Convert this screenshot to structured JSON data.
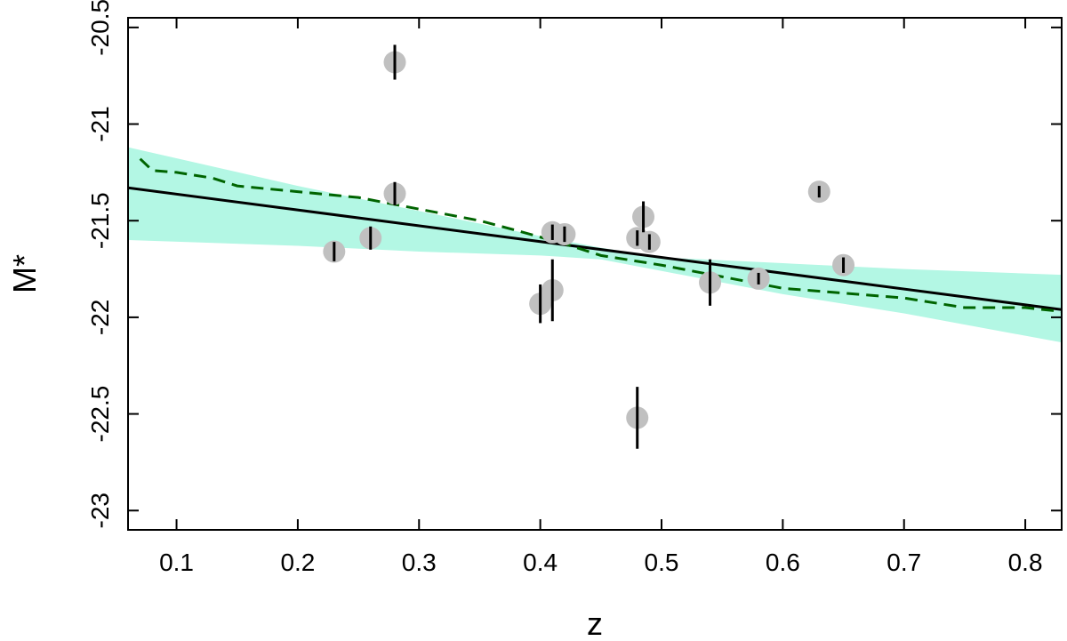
{
  "chart_data": {
    "type": "scatter",
    "title": "",
    "xlabel": "z",
    "ylabel": "M*",
    "xlim": [
      0.06,
      0.83
    ],
    "ylim": [
      -23.1,
      -20.45
    ],
    "y_inverted": true,
    "grid": false,
    "x_ticks": [
      0.1,
      0.2,
      0.3,
      0.4,
      0.5,
      0.6,
      0.7,
      0.8
    ],
    "x_tick_labels": [
      "0.1",
      "0.2",
      "0.3",
      "0.4",
      "0.5",
      "0.6",
      "0.7",
      "0.8"
    ],
    "y_ticks": [
      -20.5,
      -21,
      -21.5,
      -22,
      -22.5,
      -23
    ],
    "y_tick_labels": [
      "-20.5",
      "-21",
      "-21.5",
      "-22",
      "-22.5",
      "-23"
    ],
    "colors": {
      "points": "#c0c0c0",
      "errorbars": "#000000",
      "band": "#b3f7e4",
      "fit_line": "#000000",
      "dashed_line": "#006400"
    },
    "points": [
      {
        "x": 0.23,
        "y": -21.66,
        "err": 0.05
      },
      {
        "x": 0.26,
        "y": -21.59,
        "err": 0.06
      },
      {
        "x": 0.28,
        "y": -20.68,
        "err": 0.09
      },
      {
        "x": 0.28,
        "y": -21.36,
        "err": 0.06
      },
      {
        "x": 0.4,
        "y": -21.93,
        "err": 0.1
      },
      {
        "x": 0.41,
        "y": -21.86,
        "err": 0.16
      },
      {
        "x": 0.41,
        "y": -21.56,
        "err": 0.04
      },
      {
        "x": 0.42,
        "y": -21.57,
        "err": 0.04
      },
      {
        "x": 0.48,
        "y": -21.59,
        "err": 0.04
      },
      {
        "x": 0.48,
        "y": -22.52,
        "err": 0.16
      },
      {
        "x": 0.485,
        "y": -21.48,
        "err": 0.08
      },
      {
        "x": 0.49,
        "y": -21.61,
        "err": 0.04
      },
      {
        "x": 0.54,
        "y": -21.82,
        "err": 0.12
      },
      {
        "x": 0.58,
        "y": -21.8,
        "err": 0.03
      },
      {
        "x": 0.63,
        "y": -21.35,
        "err": 0.03
      },
      {
        "x": 0.65,
        "y": -21.73,
        "err": 0.04
      }
    ],
    "fit_line": {
      "x": [
        0.06,
        0.83
      ],
      "y": [
        -21.33,
        -21.96
      ]
    },
    "confidence_band": {
      "x": [
        0.06,
        0.2,
        0.3,
        0.4,
        0.45,
        0.5,
        0.6,
        0.7,
        0.83
      ],
      "upper": [
        -21.12,
        -21.32,
        -21.45,
        -21.58,
        -21.64,
        -21.69,
        -21.72,
        -21.75,
        -21.78
      ],
      "lower": [
        -21.6,
        -21.63,
        -21.66,
        -21.68,
        -21.7,
        -21.76,
        -21.88,
        -21.98,
        -22.13
      ]
    },
    "dashed_line": {
      "x": [
        0.07,
        0.08,
        0.1,
        0.13,
        0.15,
        0.2,
        0.25,
        0.3,
        0.35,
        0.38,
        0.42,
        0.45,
        0.5,
        0.55,
        0.6,
        0.7,
        0.75,
        0.8,
        0.83
      ],
      "y": [
        -21.18,
        -21.24,
        -21.25,
        -21.28,
        -21.32,
        -21.35,
        -21.38,
        -21.44,
        -21.5,
        -21.55,
        -21.62,
        -21.68,
        -21.73,
        -21.79,
        -21.85,
        -21.9,
        -21.95,
        -21.95,
        -21.97
      ]
    }
  }
}
